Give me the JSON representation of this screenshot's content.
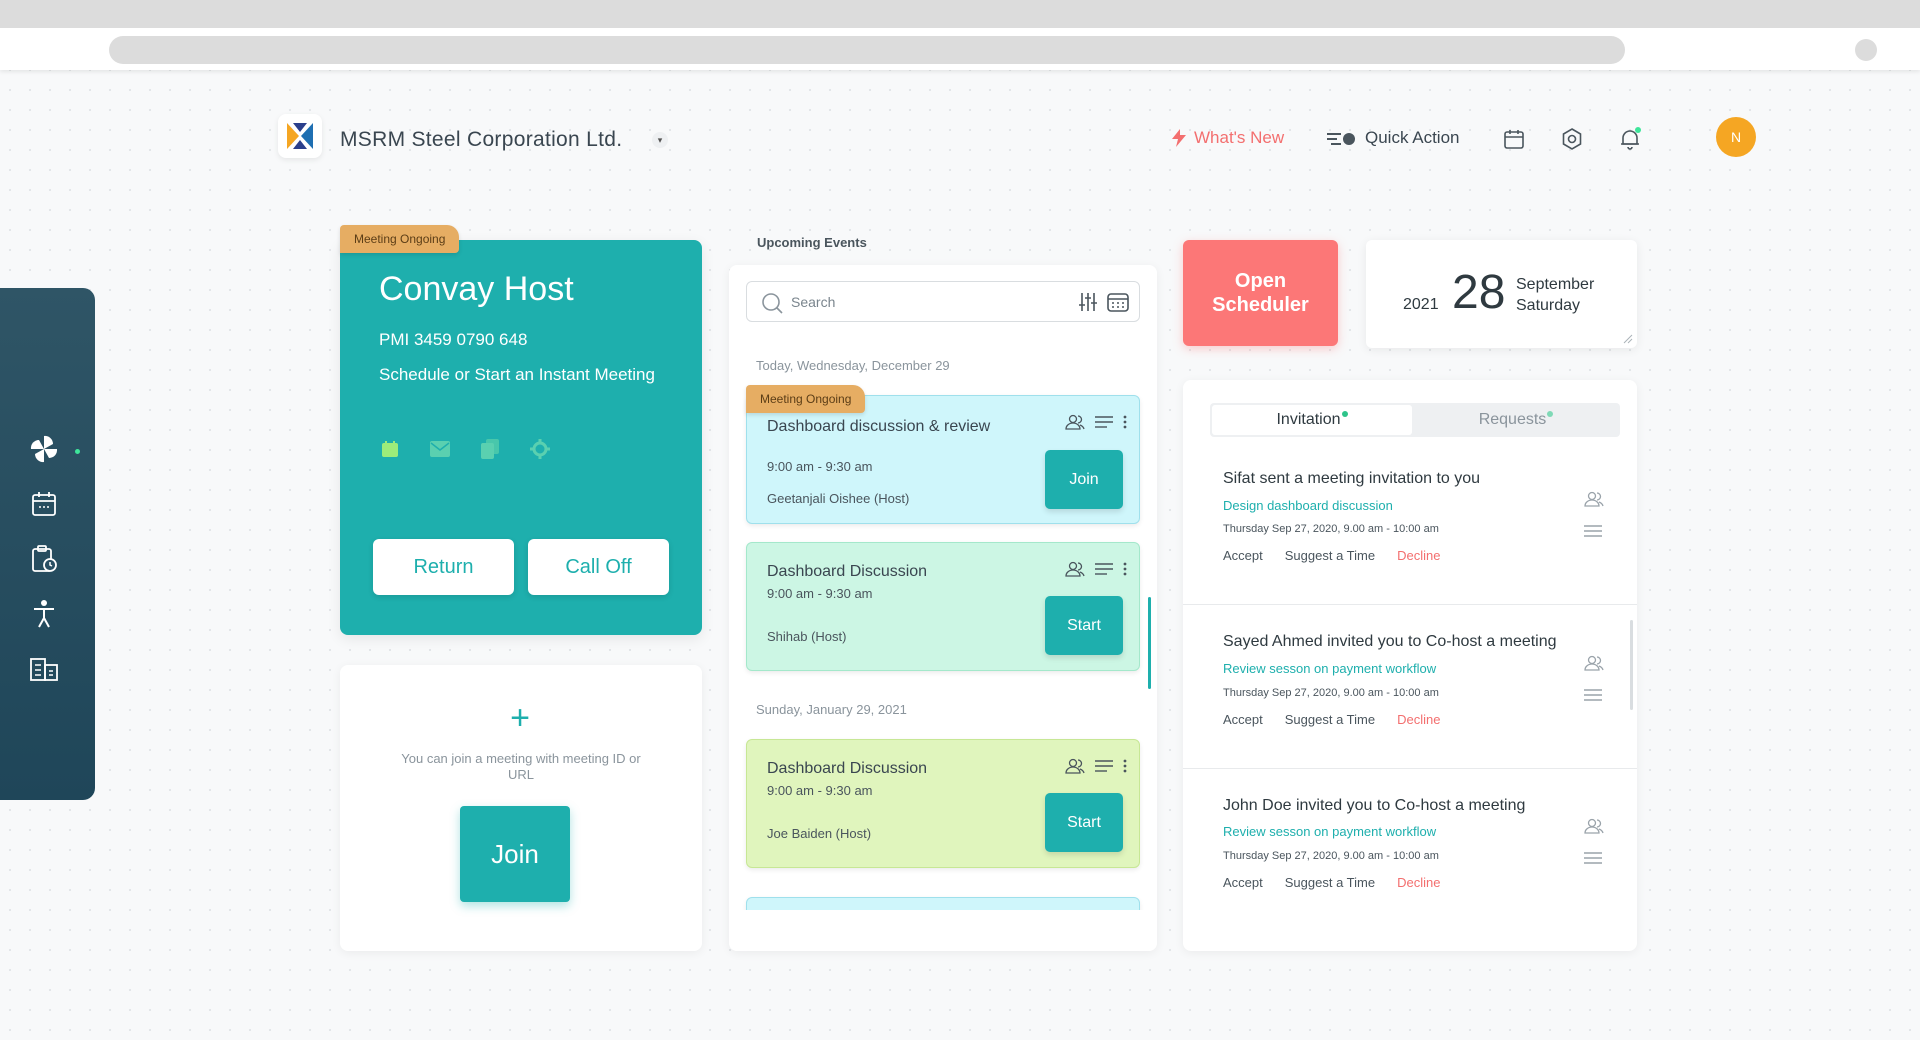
{
  "header": {
    "company_name": "MSRM Steel Corporation Ltd.",
    "whats_new": "What's New",
    "quick_action": "Quick Action",
    "avatar_initial": "N",
    "accent_color": "#1eafad",
    "alert_color": "#f36f6f"
  },
  "sidebar": {
    "items": [
      {
        "icon": "pinwheel-icon"
      },
      {
        "icon": "calendar-icon"
      },
      {
        "icon": "clipboard-clock-icon"
      },
      {
        "icon": "accessibility-icon"
      },
      {
        "icon": "building-icon"
      }
    ]
  },
  "host_card": {
    "tag": "Meeting Ongoing",
    "title": "Convay Host",
    "pmi": "PMI 3459 0790 648",
    "schedule_text": "Schedule or Start an Instant Meeting",
    "return_label": "Return",
    "calloff_label": "Call Off",
    "icons": [
      "calendar-icon",
      "mail-icon",
      "copy-icon",
      "settings-icon"
    ]
  },
  "join_card": {
    "text": "You can join a meeting with meeting ID or URL",
    "join_label": "Join"
  },
  "events": {
    "heading": "Upcoming Events",
    "search_placeholder": "Search",
    "groups": [
      {
        "date": "Today, Wednesday, December 29"
      },
      {
        "date": "Sunday, January 29, 2021"
      }
    ],
    "items": [
      {
        "tag": "Meeting Ongoing",
        "title": "Dashboard discussion & review",
        "time": "9:00 am - 9:30 am",
        "host": "Geetanjali Oishee (Host)",
        "action": "Join",
        "color": "#cff6fb"
      },
      {
        "title": "Dashboard Discussion",
        "time": "9:00 am - 9:30 am",
        "host": "Shihab (Host)",
        "action": "Start",
        "color": "#ccf6e4"
      },
      {
        "title": "Dashboard Discussion",
        "time": "9:00 am - 9:30 am",
        "host": "Joe Baiden (Host)",
        "action": "Start",
        "color": "#e0f5bd"
      }
    ]
  },
  "scheduler": {
    "label_line1": "Open",
    "label_line2": "Scheduler"
  },
  "date_card": {
    "year": "2021",
    "day": "28",
    "month": "September",
    "weekday": "Saturday"
  },
  "invitations": {
    "tabs": [
      {
        "label": "Invitation",
        "active": true
      },
      {
        "label": "Requests",
        "active": false
      }
    ],
    "items": [
      {
        "title": "Sifat sent a meeting invitation to you",
        "meeting": "Design dashboard discussion",
        "datetime": "Thursday Sep 27, 2020, 9.00 am - 10:00 am",
        "accept": "Accept",
        "suggest": "Suggest a Time",
        "decline": "Decline"
      },
      {
        "title": "Sayed Ahmed invited you to Co-host a meeting",
        "meeting": "Review sesson on payment workflow",
        "datetime": "Thursday Sep 27, 2020, 9.00 am - 10:00 am",
        "accept": "Accept",
        "suggest": "Suggest a Time",
        "decline": "Decline"
      },
      {
        "title": "John Doe invited you to Co-host a meeting",
        "meeting": "Review sesson on payment workflow",
        "datetime": "Thursday Sep 27, 2020, 9.00 am - 10:00 am",
        "accept": "Accept",
        "suggest": "Suggest a Time",
        "decline": "Decline"
      }
    ]
  }
}
